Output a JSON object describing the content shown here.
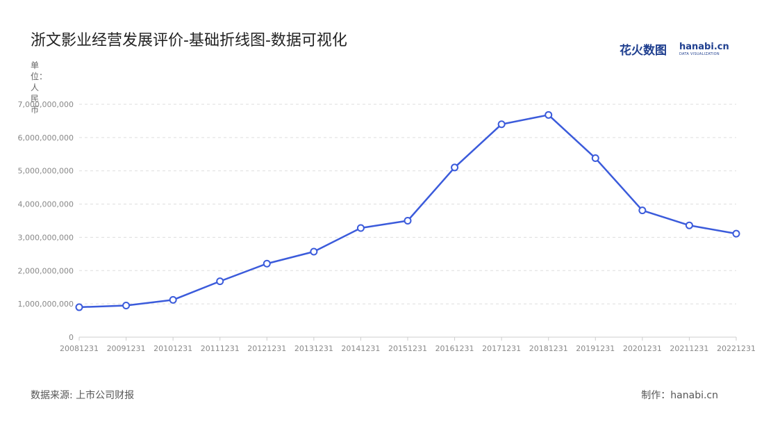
{
  "header": {
    "title": "浙文影业经营发展评价-基础折线图-数据可视化",
    "logo_cn": "花火数图",
    "logo_en": "hanabi.cn",
    "logo_sub": "DATA VISUALIZATION"
  },
  "footer": {
    "source": "数据来源: 上市公司财报",
    "credit": "制作：hanabi.cn"
  },
  "colors": {
    "line": "#3b5bdb",
    "grid": "#dddddd",
    "axis_text": "#888888"
  },
  "chart_data": {
    "type": "line",
    "title": "浙文影业经营发展评价-基础折线图-数据可视化",
    "ylabel": "单位：人民币",
    "xlabel": "",
    "categories": [
      "20081231",
      "20091231",
      "20101231",
      "20111231",
      "20121231",
      "20131231",
      "20141231",
      "20151231",
      "20161231",
      "20171231",
      "20181231",
      "20191231",
      "20201231",
      "20211231",
      "20221231"
    ],
    "series": [
      {
        "values": [
          900000000,
          950000000,
          1120000000,
          1680000000,
          2210000000,
          2570000000,
          3280000000,
          3500000000,
          5100000000,
          6400000000,
          6680000000,
          5380000000,
          3810000000,
          3360000000,
          3110000000
        ]
      }
    ],
    "ylim": [
      0,
      7000000000
    ],
    "yticks": [
      0,
      1000000000,
      2000000000,
      3000000000,
      4000000000,
      5000000000,
      6000000000,
      7000000000
    ],
    "ytick_labels": [
      "0",
      "1,000,000,000",
      "2,000,000,000",
      "3,000,000,000",
      "4,000,000,000",
      "5,000,000,000",
      "6,000,000,000",
      "7,000,000,000"
    ],
    "grid": true,
    "legend": "none"
  }
}
